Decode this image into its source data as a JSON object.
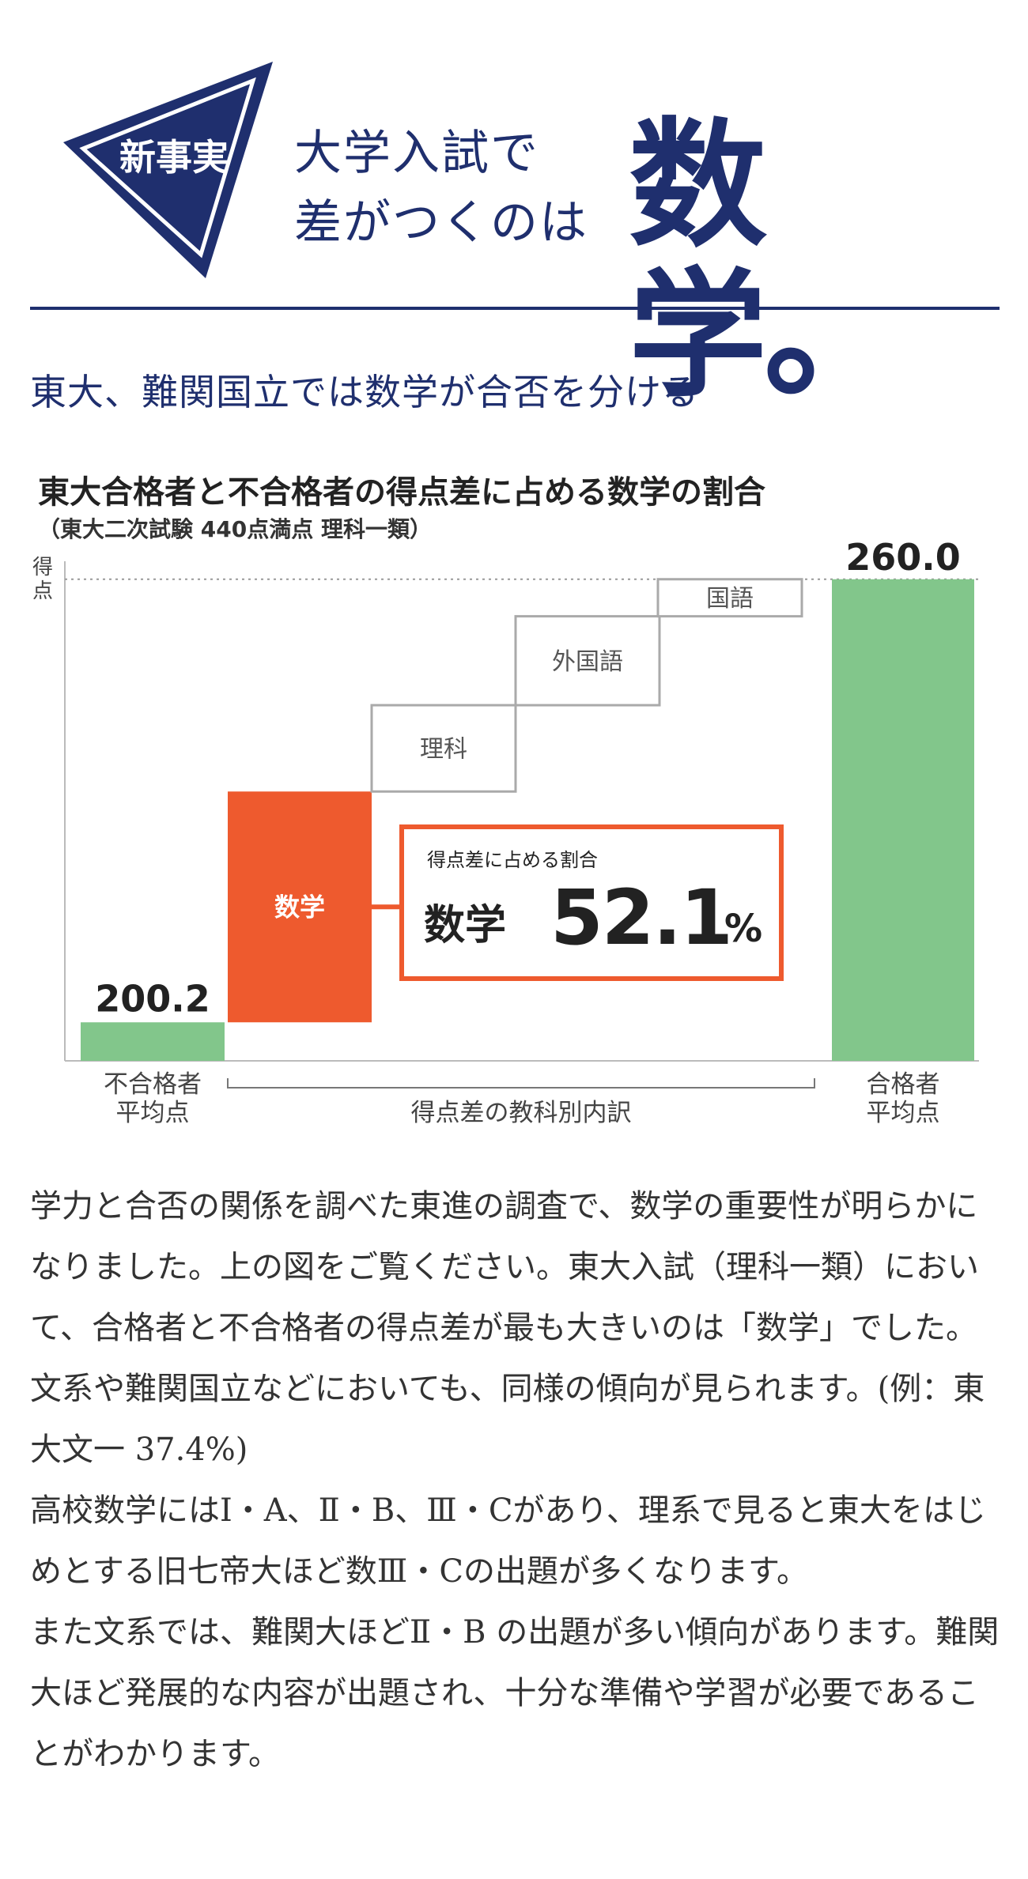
{
  "header": {
    "badge_label": "新事実",
    "headline_line1": "大学入試で",
    "headline_line2": "差がつくのは",
    "headline_big": "数学。"
  },
  "subtitle": "東大、難関国立では数学が合否を分ける",
  "colors": {
    "navy": "#1f2f6e",
    "green": "#82c68b",
    "orange": "#ee5a2e",
    "gray_box": "#aaaaaa"
  },
  "chart_data": {
    "type": "bar",
    "title": "東大合格者と不合格者の得点差に占める数学の割合",
    "subtitle": "（東大二次試験 440点満点 理科一類）",
    "ylabel": "得点",
    "ylim": [
      195,
      262
    ],
    "reference_line": 260.0,
    "categories": [
      "不合格者\n平均点",
      "数学",
      "理科",
      "外国語",
      "国語",
      "合格者\n平均点"
    ],
    "start_value": 200.2,
    "end_value": 260.0,
    "steps": [
      {
        "name": "数学",
        "from": 200.2,
        "to": 231.35
      },
      {
        "name": "理科",
        "from": 231.35,
        "to": 243.0
      },
      {
        "name": "外国語",
        "from": 243.0,
        "to": 255.0
      },
      {
        "name": "国語",
        "from": 255.0,
        "to": 260.0
      }
    ],
    "start_label": "不合格者\n平均点",
    "end_label": "合格者\n平均点",
    "start_value_label": "200.2",
    "end_value_label": "260.0",
    "bracket_label": "得点差の教科別内訳",
    "callout": {
      "small": "得点差に占める割合",
      "subject": "数学",
      "number": "52.1",
      "unit": "%"
    }
  },
  "body": [
    "学力と合否の関係を調べた東進の調査で、数学の重要性が明らかになりました。上の図をご覧ください。東大入試（理科一類）において、合格者と不合格者の得点差が最も大きいのは「数学」でした。文系や難関国立などにおいても、同様の傾向が見られます。(例：東大文一 37.4%)",
    "高校数学にはⅠ・A、Ⅱ・B、Ⅲ・Cがあり、理系で見ると東大をはじめとする旧七帝大ほど数Ⅲ・Cの出題が多くなります。",
    "また文系では、難関大ほどⅡ・B の出題が多い傾向があります。難関大ほど発展的な内容が出題され、十分な準備や学習が必要であることがわかります。"
  ]
}
